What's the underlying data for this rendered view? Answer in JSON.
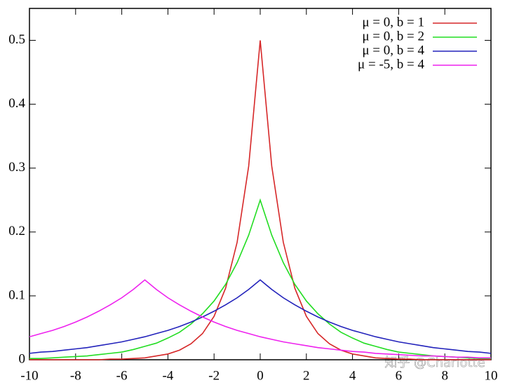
{
  "chart_data": {
    "type": "line",
    "x": [
      -10,
      -9.5,
      -9,
      -8.5,
      -8,
      -7.5,
      -7,
      -6.5,
      -6,
      -5.5,
      -5,
      -4.5,
      -4,
      -3.5,
      -3,
      -2.5,
      -2,
      -1.5,
      -1,
      -0.5,
      0,
      0.5,
      1,
      1.5,
      2,
      2.5,
      3,
      3.5,
      4,
      4.5,
      5,
      5.5,
      6,
      6.5,
      7,
      7.5,
      8,
      8.5,
      9,
      9.5,
      10
    ],
    "series": [
      {
        "name": "μ =  0, b = 1",
        "color": "#d62728",
        "values": [
          0,
          0,
          0,
          0,
          0,
          0,
          0,
          0.001,
          0.001,
          0.002,
          0.003,
          0.006,
          0.009,
          0.015,
          0.025,
          0.041,
          0.068,
          0.112,
          0.184,
          0.303,
          0.5,
          0.303,
          0.184,
          0.112,
          0.068,
          0.041,
          0.025,
          0.015,
          0.009,
          0.006,
          0.003,
          0.002,
          0.001,
          0.001,
          0,
          0,
          0,
          0,
          0,
          0,
          0
        ]
      },
      {
        "name": "μ =  0, b = 2",
        "color": "#22dd22",
        "values": [
          0.002,
          0.002,
          0.003,
          0.004,
          0.005,
          0.006,
          0.008,
          0.01,
          0.012,
          0.016,
          0.021,
          0.026,
          0.034,
          0.043,
          0.056,
          0.072,
          0.092,
          0.118,
          0.152,
          0.195,
          0.25,
          0.195,
          0.152,
          0.118,
          0.092,
          0.072,
          0.056,
          0.043,
          0.034,
          0.026,
          0.021,
          0.016,
          0.012,
          0.01,
          0.008,
          0.006,
          0.005,
          0.004,
          0.003,
          0.002,
          0.002
        ]
      },
      {
        "name": "μ =  0, b = 4",
        "color": "#2222bb",
        "values": [
          0.01,
          0.012,
          0.013,
          0.015,
          0.017,
          0.019,
          0.022,
          0.025,
          0.028,
          0.032,
          0.036,
          0.041,
          0.046,
          0.052,
          0.059,
          0.067,
          0.076,
          0.086,
          0.097,
          0.11,
          0.125,
          0.11,
          0.097,
          0.086,
          0.076,
          0.067,
          0.059,
          0.052,
          0.046,
          0.041,
          0.036,
          0.032,
          0.028,
          0.025,
          0.022,
          0.019,
          0.017,
          0.015,
          0.013,
          0.012,
          0.01
        ]
      },
      {
        "name": "μ = -5, b = 4",
        "color": "#ee22ee",
        "values": [
          0.036,
          0.041,
          0.046,
          0.052,
          0.059,
          0.067,
          0.076,
          0.086,
          0.097,
          0.11,
          0.125,
          0.11,
          0.097,
          0.086,
          0.076,
          0.067,
          0.059,
          0.052,
          0.046,
          0.041,
          0.036,
          0.032,
          0.028,
          0.025,
          0.022,
          0.019,
          0.017,
          0.015,
          0.013,
          0.012,
          0.01,
          0.009,
          0.008,
          0.007,
          0.006,
          0.006,
          0.005,
          0.004,
          0.004,
          0.003,
          0.003
        ]
      }
    ],
    "xlim": [
      -10,
      10
    ],
    "xticks": [
      -10,
      -8,
      -6,
      -4,
      -2,
      0,
      2,
      4,
      6,
      8,
      10
    ],
    "ylim": [
      0,
      0.55
    ],
    "yticks": [
      0,
      0.1,
      0.2,
      0.3,
      0.4,
      0.5
    ],
    "legend": "top-right",
    "watermark": "知乎 @Charlotte"
  }
}
